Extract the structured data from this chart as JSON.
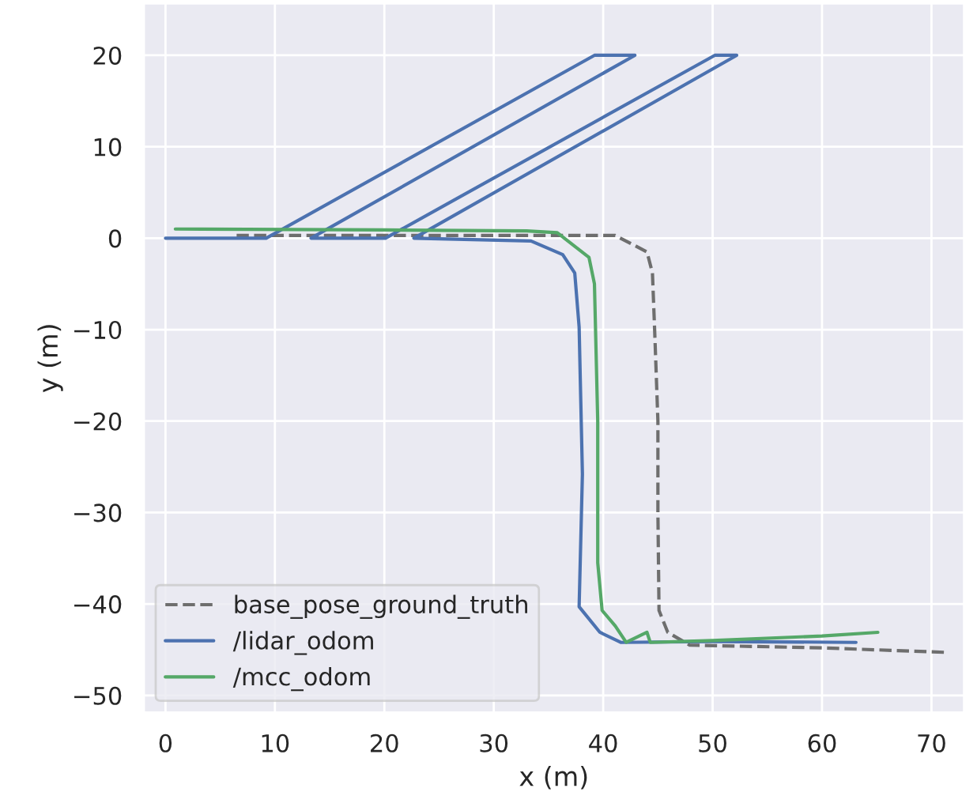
{
  "chart_data": {
    "type": "line",
    "xlabel": "x (m)",
    "ylabel": "y (m)",
    "xlim": [
      -2,
      73
    ],
    "ylim": [
      -51.9,
      25.7
    ],
    "xticks": [
      0,
      10,
      20,
      30,
      40,
      50,
      60,
      70
    ],
    "yticks": [
      -50,
      -40,
      -30,
      -20,
      -10,
      0,
      10,
      20
    ],
    "grid": true,
    "legend": "bottom left",
    "series": [
      {
        "name": "base_pose_ground_truth",
        "color": "#6e6e6e",
        "line_style": "dashed",
        "x": [
          6.5,
          20,
          35,
          41.1,
          44.0,
          44.5,
          44.7,
          45.0,
          45.0,
          45.1,
          45.9,
          47.9,
          60,
          71.5
        ],
        "values": [
          0.3,
          0.3,
          0.3,
          0.3,
          -1.5,
          -3.8,
          -10,
          -20,
          -30,
          -40.7,
          -43.1,
          -44.5,
          -44.8,
          -45.3
        ]
      },
      {
        "name": "/lidar_odom",
        "color": "#4c72b0",
        "line_style": "solid",
        "x": [
          0,
          9.2,
          39.2,
          42.9,
          13.3,
          20.1,
          50.2,
          52.2,
          22.7,
          33.4,
          36.3,
          37.4,
          37.8,
          38.1,
          37.8,
          39.7,
          41.6,
          50,
          63.1
        ],
        "values": [
          0,
          0,
          20,
          20,
          0,
          0,
          20,
          20,
          0,
          -0.3,
          -1.8,
          -3.8,
          -9.7,
          -25.8,
          -40.3,
          -43.1,
          -44.2,
          -44.1,
          -44.2
        ]
      },
      {
        "name": "/mcc_odom",
        "color": "#55a868",
        "line_style": "solid",
        "x": [
          0.9,
          20,
          33,
          35.8,
          38.7,
          39.2,
          39.5,
          39.5,
          39.9,
          41.1,
          42.1,
          44.0,
          44.3,
          50,
          60,
          65.1
        ],
        "values": [
          1.0,
          0.9,
          0.8,
          0.6,
          -2.1,
          -5,
          -20,
          -35.5,
          -40.7,
          -42.4,
          -44.2,
          -43.1,
          -44.2,
          -44.0,
          -43.5,
          -43.1
        ]
      }
    ]
  }
}
